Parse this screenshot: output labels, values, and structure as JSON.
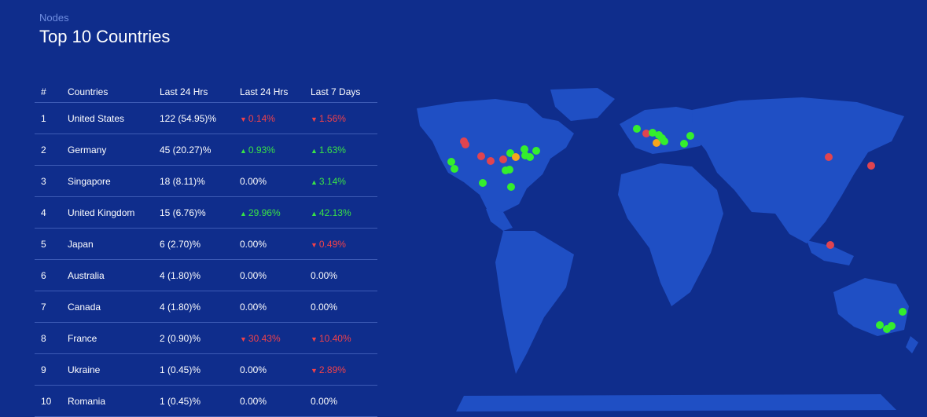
{
  "header": {
    "subtitle": "Nodes",
    "title": "Top 10 Countries"
  },
  "table": {
    "columns": [
      "#",
      "Countries",
      "Last 24 Hrs",
      "Last 24 Hrs",
      "Last 7 Days"
    ],
    "rows": [
      {
        "rank": "1",
        "country": "United States",
        "nodes": "122 (54.95)%",
        "d24": "0.14%",
        "d24_dir": "down",
        "d7": "1.56%",
        "d7_dir": "down"
      },
      {
        "rank": "2",
        "country": "Germany",
        "nodes": "45 (20.27)%",
        "d24": "0.93%",
        "d24_dir": "up",
        "d7": "1.63%",
        "d7_dir": "up"
      },
      {
        "rank": "3",
        "country": "Singapore",
        "nodes": "18 (8.11)%",
        "d24": "0.00%",
        "d24_dir": "none",
        "d7": "3.14%",
        "d7_dir": "up"
      },
      {
        "rank": "4",
        "country": "United Kingdom",
        "nodes": "15 (6.76)%",
        "d24": "29.96%",
        "d24_dir": "up",
        "d7": "42.13%",
        "d7_dir": "up"
      },
      {
        "rank": "5",
        "country": "Japan",
        "nodes": "6 (2.70)%",
        "d24": "0.00%",
        "d24_dir": "none",
        "d7": "0.49%",
        "d7_dir": "down"
      },
      {
        "rank": "6",
        "country": "Australia",
        "nodes": "4 (1.80)%",
        "d24": "0.00%",
        "d24_dir": "none",
        "d7": "0.00%",
        "d7_dir": "none"
      },
      {
        "rank": "7",
        "country": "Canada",
        "nodes": "4 (1.80)%",
        "d24": "0.00%",
        "d24_dir": "none",
        "d7": "0.00%",
        "d7_dir": "none"
      },
      {
        "rank": "8",
        "country": "France",
        "nodes": "2 (0.90)%",
        "d24": "30.43%",
        "d24_dir": "down",
        "d7": "10.40%",
        "d7_dir": "down"
      },
      {
        "rank": "9",
        "country": "Ukraine",
        "nodes": "1 (0.45)%",
        "d24": "0.00%",
        "d24_dir": "none",
        "d7": "2.89%",
        "d7_dir": "down"
      },
      {
        "rank": "10",
        "country": "Romania",
        "nodes": "1 (0.45)%",
        "d24": "0.00%",
        "d24_dir": "none",
        "d7": "0.00%",
        "d7_dir": "none"
      }
    ]
  },
  "map": {
    "colors": {
      "land": "#1f4fc4",
      "up": "#34ee2d",
      "down": "#e04450",
      "warn": "#f6a51c"
    }
  }
}
